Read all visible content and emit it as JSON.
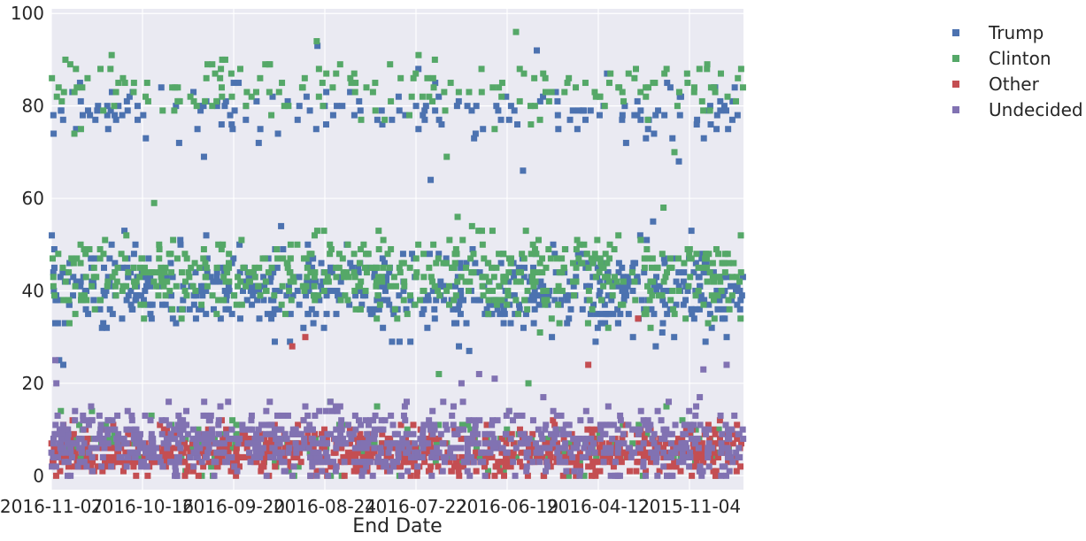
{
  "chart_data": {
    "type": "scatter",
    "title": "",
    "xlabel": "End Date",
    "ylabel": "",
    "x_tick_labels": [
      "2016-11-07",
      "2016-10-16",
      "2016-09-20",
      "2016-08-24",
      "2016-07-22",
      "2016-06-19",
      "2016-04-12",
      "2015-11-04"
    ],
    "y_ticks": [
      0,
      20,
      40,
      60,
      80,
      100
    ],
    "ylim": [
      -3,
      101
    ],
    "grid": true,
    "legend_position": "outside-right",
    "marker": "square",
    "colors": {
      "Trump": "#4c72b0",
      "Clinton": "#55a868",
      "Other": "#c44e52",
      "Undecided": "#8172b2"
    },
    "series": [
      {
        "name": "Trump",
        "bands": [
          {
            "y_center": 40,
            "y_spread": 7,
            "point_count": 620,
            "outliers_low": [
              24,
              29
            ],
            "outliers_high": [
              54,
              55
            ]
          },
          {
            "y_center": 79,
            "y_spread": 5,
            "point_count": 170,
            "outliers_low": [
              64,
              68,
              69
            ],
            "outliers_high": [
              92,
              93
            ]
          }
        ]
      },
      {
        "name": "Clinton",
        "bands": [
          {
            "y_center": 43,
            "y_spread": 7,
            "point_count": 560,
            "outliers_low": [
              14,
              20,
              22
            ],
            "outliers_high": [
              56,
              58,
              59
            ]
          },
          {
            "y_center": 84,
            "y_spread": 5,
            "point_count": 180,
            "outliers_low": [
              69,
              70
            ],
            "outliers_high": [
              94,
              96
            ]
          },
          {
            "y_center": 6,
            "y_spread": 5,
            "point_count": 220,
            "outliers_low": [],
            "outliers_high": []
          }
        ]
      },
      {
        "name": "Other",
        "bands": [
          {
            "y_center": 5,
            "y_spread": 4,
            "point_count": 900,
            "outliers_low": [
              0
            ],
            "outliers_high": [
              24,
              28,
              30,
              34
            ]
          }
        ]
      },
      {
        "name": "Undecided",
        "bands": [
          {
            "y_center": 7,
            "y_spread": 6,
            "point_count": 900,
            "outliers_low": [
              0
            ],
            "outliers_high": [
              20,
              22,
              23,
              24,
              25
            ]
          }
        ]
      }
    ]
  }
}
